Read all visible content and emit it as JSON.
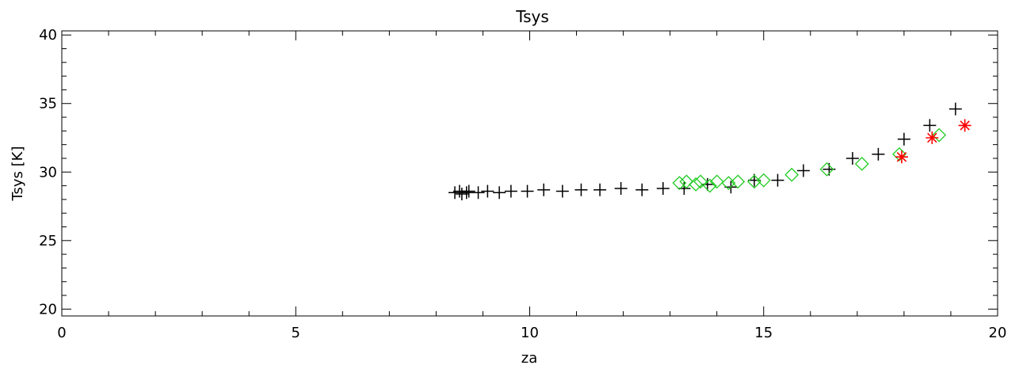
{
  "chart_data": {
    "type": "scatter",
    "title": "Tsys",
    "xlabel": "za",
    "ylabel": "Tsys [K]",
    "xlim": [
      0,
      20
    ],
    "ylim": [
      19.5,
      40.3
    ],
    "x_ticks": [
      0,
      5,
      10,
      15,
      20
    ],
    "x_tick_labels": [
      "0",
      "5",
      "10",
      "15",
      "20"
    ],
    "y_ticks": [
      20,
      25,
      30,
      35,
      40
    ],
    "y_tick_labels": [
      "20",
      "25",
      "30",
      "35",
      "40"
    ],
    "grid": false,
    "series": [
      {
        "marker": "plus",
        "color": "#000000",
        "points": [
          [
            8.4,
            28.5
          ],
          [
            8.5,
            28.6
          ],
          [
            8.55,
            28.4
          ],
          [
            8.65,
            28.5
          ],
          [
            8.7,
            28.6
          ],
          [
            8.9,
            28.5
          ],
          [
            9.1,
            28.6
          ],
          [
            9.35,
            28.5
          ],
          [
            9.6,
            28.6
          ],
          [
            9.95,
            28.6
          ],
          [
            10.3,
            28.7
          ],
          [
            10.7,
            28.6
          ],
          [
            11.1,
            28.7
          ],
          [
            11.5,
            28.7
          ],
          [
            11.95,
            28.8
          ],
          [
            12.4,
            28.7
          ],
          [
            12.85,
            28.8
          ],
          [
            13.3,
            28.8
          ],
          [
            13.8,
            29.1
          ],
          [
            14.3,
            28.9
          ],
          [
            14.8,
            29.4
          ],
          [
            15.3,
            29.4
          ],
          [
            15.85,
            30.1
          ],
          [
            16.4,
            30.2
          ],
          [
            16.9,
            31.0
          ],
          [
            17.45,
            31.3
          ],
          [
            18.0,
            32.4
          ],
          [
            18.55,
            33.4
          ],
          [
            19.1,
            34.6
          ]
        ]
      },
      {
        "marker": "diamond",
        "color": "#22cc22",
        "points": [
          [
            13.2,
            29.2
          ],
          [
            13.35,
            29.3
          ],
          [
            13.55,
            29.1
          ],
          [
            13.65,
            29.3
          ],
          [
            13.85,
            29.0
          ],
          [
            14.0,
            29.3
          ],
          [
            14.25,
            29.2
          ],
          [
            14.45,
            29.3
          ],
          [
            14.8,
            29.3
          ],
          [
            15.0,
            29.4
          ],
          [
            15.6,
            29.8
          ],
          [
            16.35,
            30.2
          ],
          [
            17.1,
            30.6
          ],
          [
            17.9,
            31.3
          ],
          [
            18.75,
            32.7
          ]
        ]
      },
      {
        "marker": "asterisk",
        "color": "#ff0000",
        "points": [
          [
            17.95,
            31.1
          ],
          [
            18.6,
            32.5
          ],
          [
            19.3,
            33.4
          ]
        ]
      }
    ]
  }
}
